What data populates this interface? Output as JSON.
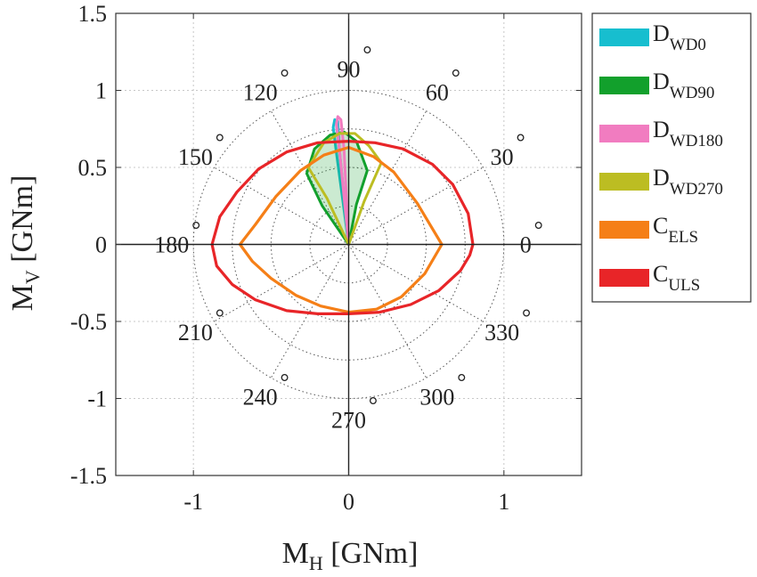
{
  "chart_data": {
    "type": "polar-line",
    "xlabel": {
      "main": "M",
      "sub": "H",
      "unit": " [GNm]"
    },
    "ylabel": {
      "main": "M",
      "sub": "V",
      "unit": " [GNm]"
    },
    "xlim": [
      -1.5,
      1.5
    ],
    "ylim": [
      -1.5,
      1.5
    ],
    "x_ticks": [
      -1,
      0,
      1
    ],
    "y_ticks": [
      1.5,
      1,
      0.5,
      0,
      -0.5,
      -1,
      -1.5
    ],
    "x_tick_labels": [
      "-1",
      "0",
      "1"
    ],
    "y_tick_labels": [
      "1.5",
      "1",
      "0.5",
      "0",
      "-0.5",
      "-1",
      "-1.5"
    ],
    "grid": true,
    "polar_grid": {
      "radii": [
        0.25,
        0.5,
        0.75,
        1.0
      ],
      "angles_deg": [
        0,
        30,
        60,
        90,
        120,
        150,
        180,
        210,
        240,
        270,
        300,
        330
      ],
      "angle_labels": [
        "0",
        "30",
        "60",
        "90",
        "120",
        "150",
        "180",
        "210",
        "240",
        "270",
        "300",
        "330"
      ],
      "degree_symbol": "°"
    },
    "legend": {
      "placement": "outside-right",
      "entries": [
        {
          "main": "D",
          "sub": "WD0",
          "color": "#17becf"
        },
        {
          "main": "D",
          "sub": "WD90",
          "color": "#12a02c"
        },
        {
          "main": "D",
          "sub": "WD180",
          "color": "#f17cc0"
        },
        {
          "main": "D",
          "sub": "WD270",
          "color": "#bcbd22"
        },
        {
          "main": "C",
          "sub": "ELS",
          "color": "#f57f17"
        },
        {
          "main": "C",
          "sub": "ULS",
          "color": "#e82528"
        }
      ]
    },
    "series": [
      {
        "key": "D_WD0",
        "color": "#17becf",
        "filled": true,
        "points": [
          [
            0,
            0
          ],
          [
            -0.08,
            0.6
          ],
          [
            -0.1,
            0.76
          ],
          [
            -0.09,
            0.81
          ],
          [
            -0.07,
            0.8
          ],
          [
            -0.06,
            0.62
          ],
          [
            0,
            0
          ]
        ]
      },
      {
        "key": "D_WD90",
        "color": "#12a02c",
        "filled": true,
        "points": [
          [
            0,
            0
          ],
          [
            -0.17,
            0.25
          ],
          [
            -0.27,
            0.46
          ],
          [
            -0.22,
            0.62
          ],
          [
            -0.12,
            0.71
          ],
          [
            -0.03,
            0.73
          ],
          [
            0.05,
            0.67
          ],
          [
            0.12,
            0.48
          ],
          [
            0.05,
            0.26
          ],
          [
            0,
            0
          ]
        ]
      },
      {
        "key": "D_WD180",
        "color": "#f17cc0",
        "filled": true,
        "points": [
          [
            0,
            0
          ],
          [
            -0.06,
            0.62
          ],
          [
            -0.08,
            0.78
          ],
          [
            -0.07,
            0.83
          ],
          [
            -0.05,
            0.81
          ],
          [
            -0.03,
            0.62
          ],
          [
            0,
            0
          ]
        ]
      },
      {
        "key": "D_WD270",
        "color": "#bcbd22",
        "filled": false,
        "points": [
          [
            0,
            0
          ],
          [
            -0.14,
            0.3
          ],
          [
            -0.26,
            0.5
          ],
          [
            -0.16,
            0.66
          ],
          [
            -0.06,
            0.72
          ],
          [
            0.04,
            0.72
          ],
          [
            0.13,
            0.64
          ],
          [
            0.21,
            0.53
          ],
          [
            0.1,
            0.28
          ],
          [
            0,
            0
          ]
        ]
      },
      {
        "key": "C_ELS",
        "color": "#f57f17",
        "filled": false,
        "points": [
          [
            0.6,
            0
          ],
          [
            0.44,
            0.27
          ],
          [
            0.29,
            0.47
          ],
          [
            0.16,
            0.57
          ],
          [
            0,
            0.63
          ],
          [
            -0.16,
            0.58
          ],
          [
            -0.31,
            0.48
          ],
          [
            -0.47,
            0.31
          ],
          [
            -0.6,
            0.13
          ],
          [
            -0.7,
            0
          ],
          [
            -0.62,
            -0.11
          ],
          [
            -0.5,
            -0.22
          ],
          [
            -0.34,
            -0.33
          ],
          [
            -0.18,
            -0.4
          ],
          [
            0,
            -0.44
          ],
          [
            0.18,
            -0.42
          ],
          [
            0.34,
            -0.34
          ],
          [
            0.49,
            -0.19
          ],
          [
            0.6,
            0
          ]
        ]
      },
      {
        "key": "C_ULS",
        "color": "#e82528",
        "filled": false,
        "points": [
          [
            0.8,
            0
          ],
          [
            0.77,
            0.2
          ],
          [
            0.67,
            0.39
          ],
          [
            0.54,
            0.52
          ],
          [
            0.35,
            0.62
          ],
          [
            0.17,
            0.66
          ],
          [
            0,
            0.67
          ],
          [
            -0.2,
            0.66
          ],
          [
            -0.4,
            0.6
          ],
          [
            -0.58,
            0.49
          ],
          [
            -0.72,
            0.34
          ],
          [
            -0.83,
            0.18
          ],
          [
            -0.88,
            0
          ],
          [
            -0.85,
            -0.14
          ],
          [
            -0.75,
            -0.26
          ],
          [
            -0.6,
            -0.36
          ],
          [
            -0.4,
            -0.43
          ],
          [
            -0.2,
            -0.45
          ],
          [
            0,
            -0.45
          ],
          [
            0.2,
            -0.44
          ],
          [
            0.4,
            -0.39
          ],
          [
            0.58,
            -0.3
          ],
          [
            0.72,
            -0.17
          ],
          [
            0.78,
            -0.07
          ],
          [
            0.8,
            0
          ]
        ]
      }
    ]
  }
}
